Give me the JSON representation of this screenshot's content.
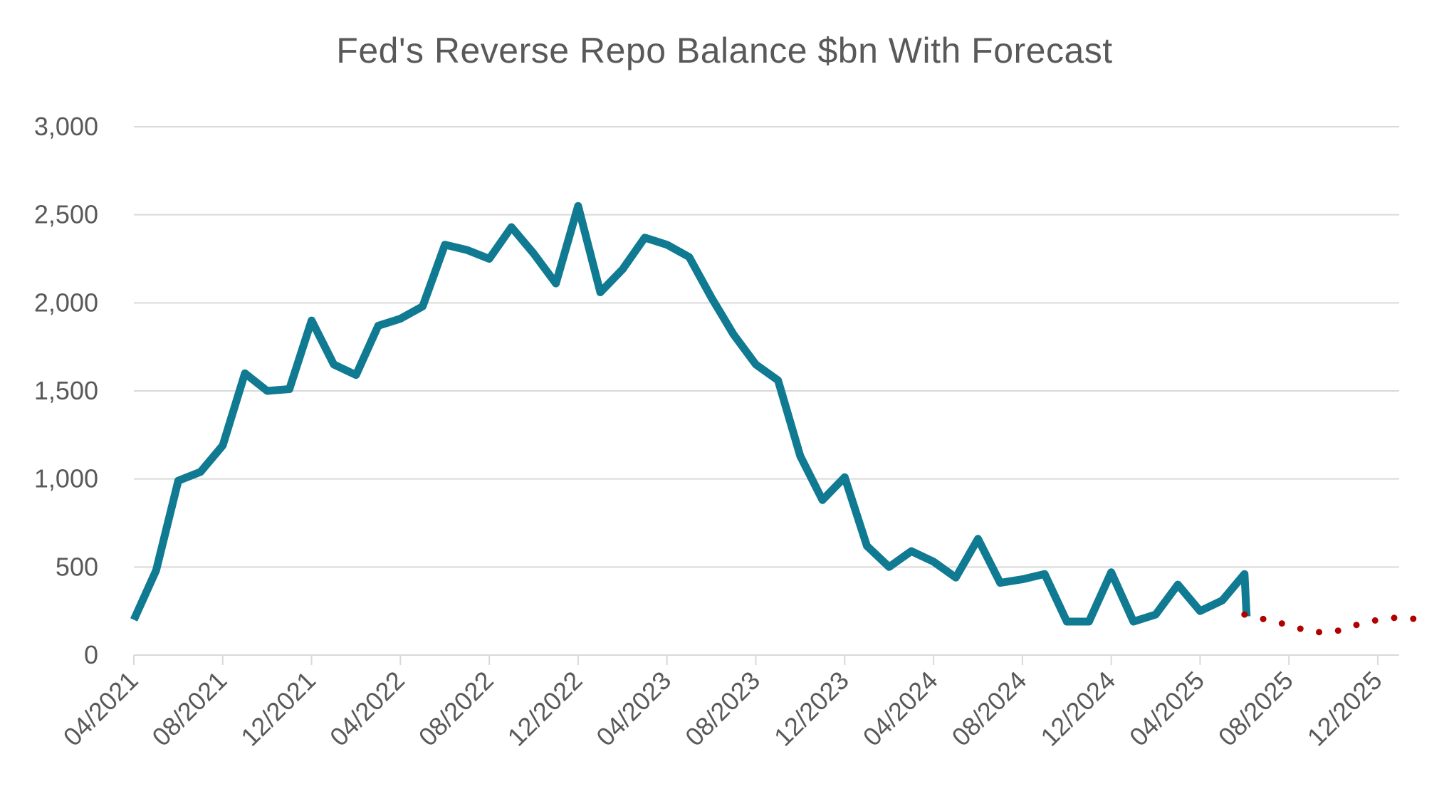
{
  "chart_data": {
    "type": "line",
    "title": "Fed's Reverse Repo Balance $bn With Forecast",
    "xlabel": "",
    "ylabel": "",
    "ylim": [
      0,
      3000
    ],
    "yticks": [
      0,
      500,
      1000,
      1500,
      2000,
      2500,
      3000
    ],
    "ytick_labels": [
      "0",
      "500",
      "1,000",
      "1,500",
      "2,000",
      "2,500",
      "3,000"
    ],
    "xlim": [
      "2021-04",
      "2026-01"
    ],
    "xticks": [
      "2021-04",
      "2021-08",
      "2021-12",
      "2022-04",
      "2022-08",
      "2022-12",
      "2023-04",
      "2023-08",
      "2023-12",
      "2024-04",
      "2024-08",
      "2024-12",
      "2025-04",
      "2025-08",
      "2025-12"
    ],
    "xtick_labels": [
      "04/2021",
      "08/2021",
      "12/2021",
      "04/2022",
      "08/2022",
      "12/2022",
      "04/2023",
      "08/2023",
      "12/2023",
      "04/2024",
      "08/2024",
      "12/2024",
      "04/2025",
      "08/2025",
      "12/2025"
    ],
    "grid": true,
    "legend": "none",
    "colors": {
      "actual": "#0F7A91",
      "forecast": "#B00000",
      "grid": "#D9D9D9",
      "text": "#595959"
    },
    "series": [
      {
        "style": "solid",
        "points": [
          [
            "2021-04",
            200
          ],
          [
            "2021-05",
            480
          ],
          [
            "2021-06",
            990
          ],
          [
            "2021-07",
            1040
          ],
          [
            "2021-08",
            1190
          ],
          [
            "2021-09",
            1600
          ],
          [
            "2021-10",
            1500
          ],
          [
            "2021-11",
            1510
          ],
          [
            "2021-12",
            1900
          ],
          [
            "2022-01",
            1650
          ],
          [
            "2022-02",
            1590
          ],
          [
            "2022-03",
            1870
          ],
          [
            "2022-04",
            1910
          ],
          [
            "2022-05",
            1980
          ],
          [
            "2022-06",
            2330
          ],
          [
            "2022-07",
            2300
          ],
          [
            "2022-08",
            2250
          ],
          [
            "2022-09",
            2430
          ],
          [
            "2022-10",
            2280
          ],
          [
            "2022-11",
            2110
          ],
          [
            "2022-12",
            2550
          ],
          [
            "2023-01",
            2060
          ],
          [
            "2023-02",
            2190
          ],
          [
            "2023-03",
            2370
          ],
          [
            "2023-04",
            2330
          ],
          [
            "2023-05",
            2260
          ],
          [
            "2023-06",
            2030
          ],
          [
            "2023-07",
            1820
          ],
          [
            "2023-08",
            1650
          ],
          [
            "2023-09",
            1560
          ],
          [
            "2023-10",
            1130
          ],
          [
            "2023-11",
            880
          ],
          [
            "2023-12",
            1010
          ],
          [
            "2024-01",
            620
          ],
          [
            "2024-02",
            500
          ],
          [
            "2024-03",
            590
          ],
          [
            "2024-04",
            530
          ],
          [
            "2024-05",
            440
          ],
          [
            "2024-06",
            660
          ],
          [
            "2024-07",
            410
          ],
          [
            "2024-08",
            430
          ],
          [
            "2024-09",
            460
          ],
          [
            "2024-10",
            190
          ],
          [
            "2024-11",
            190
          ],
          [
            "2024-12",
            470
          ],
          [
            "2025-01",
            190
          ],
          [
            "2025-02",
            230
          ],
          [
            "2025-03",
            400
          ],
          [
            "2025-04",
            250
          ],
          [
            "2025-05",
            310
          ],
          [
            "2025-06",
            460
          ],
          [
            "2025-06",
            220
          ]
        ]
      },
      {
        "style": "dotted",
        "points": [
          [
            "2025-06",
            230
          ],
          [
            "2025-07",
            200
          ],
          [
            "2025-08",
            170
          ],
          [
            "2025-09",
            130
          ],
          [
            "2025-10",
            130
          ],
          [
            "2025-11",
            170
          ],
          [
            "2025-12",
            200
          ],
          [
            "2026-01",
            215
          ],
          [
            "2026-02",
            200
          ]
        ]
      }
    ]
  }
}
